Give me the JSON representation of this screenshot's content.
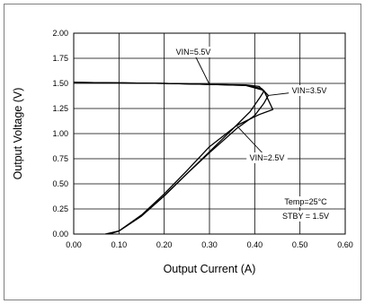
{
  "chart_data": {
    "type": "line",
    "title": "",
    "xlabel": "Output Current (A)",
    "ylabel": "Output Voltage (V)",
    "xlim": [
      0,
      0.6
    ],
    "ylim": [
      0,
      2.0
    ],
    "xticks": [
      "0.00",
      "0.10",
      "0.20",
      "0.30",
      "0.40",
      "0.50",
      "0.60"
    ],
    "yticks": [
      "0.00",
      "0.25",
      "0.50",
      "0.75",
      "1.00",
      "1.25",
      "1.50",
      "1.75",
      "2.00"
    ],
    "grid": true,
    "legend": "none",
    "series": [
      {
        "name": "VIN=5.5V",
        "points": [
          [
            0.0,
            1.51
          ],
          [
            0.1,
            1.505
          ],
          [
            0.2,
            1.5
          ],
          [
            0.3,
            1.49
          ],
          [
            0.38,
            1.485
          ],
          [
            0.41,
            1.47
          ],
          [
            0.42,
            1.42
          ],
          [
            0.41,
            1.35
          ],
          [
            0.39,
            1.22
          ],
          [
            0.35,
            1.04
          ],
          [
            0.3,
            0.82
          ],
          [
            0.25,
            0.6
          ],
          [
            0.2,
            0.38
          ],
          [
            0.15,
            0.18
          ],
          [
            0.1,
            0.03
          ],
          [
            0.078,
            0.0
          ]
        ]
      },
      {
        "name": "VIN=3.5V",
        "points": [
          [
            0.0,
            1.51
          ],
          [
            0.1,
            1.505
          ],
          [
            0.2,
            1.5
          ],
          [
            0.3,
            1.49
          ],
          [
            0.38,
            1.48
          ],
          [
            0.415,
            1.45
          ],
          [
            0.43,
            1.38
          ],
          [
            0.42,
            1.3
          ],
          [
            0.4,
            1.18
          ],
          [
            0.36,
            1.05
          ],
          [
            0.3,
            0.81
          ],
          [
            0.25,
            0.6
          ],
          [
            0.2,
            0.38
          ],
          [
            0.15,
            0.18
          ],
          [
            0.1,
            0.03
          ],
          [
            0.075,
            0.0
          ]
        ]
      },
      {
        "name": "VIN=2.5V",
        "points": [
          [
            0.0,
            1.51
          ],
          [
            0.1,
            1.505
          ],
          [
            0.2,
            1.5
          ],
          [
            0.3,
            1.49
          ],
          [
            0.38,
            1.48
          ],
          [
            0.42,
            1.43
          ],
          [
            0.44,
            1.24
          ],
          [
            0.41,
            1.19
          ],
          [
            0.36,
            1.08
          ],
          [
            0.3,
            0.87
          ],
          [
            0.25,
            0.63
          ],
          [
            0.2,
            0.4
          ],
          [
            0.15,
            0.19
          ],
          [
            0.1,
            0.03
          ],
          [
            0.07,
            0.0
          ]
        ]
      }
    ],
    "annotations": [
      {
        "text": "VIN=5.5V",
        "target": [
          0.3,
          1.49
        ]
      },
      {
        "text": "VIN=3.5V",
        "target": [
          0.43,
          1.38
        ]
      },
      {
        "text": "VIN=2.5V",
        "target": [
          0.36,
          1.08
        ]
      },
      {
        "text": "Temp=25°C"
      },
      {
        "text": "STBY = 1.5V"
      }
    ]
  }
}
